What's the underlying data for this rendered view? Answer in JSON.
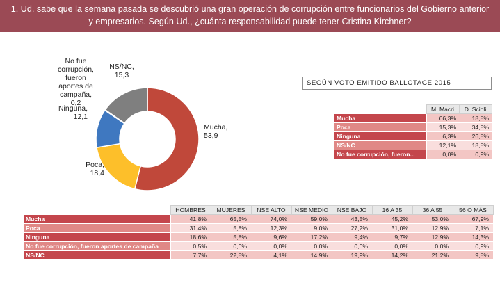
{
  "title": {
    "line1": "1. Ud. sabe que la semana pasada se descubrió una gran operación de corrupción entre funcionarios del Gobierno anterior",
    "line2": "y empresarios. Según Ud., ¿cuánta responsabilidad puede tener Cristina Kirchner?"
  },
  "colors": {
    "title_bg": "#9b4a55",
    "mucha": "#c0483a",
    "poca": "#fdbf2a",
    "no_fue": "#4cae8e",
    "ninguna": "#3f78c0",
    "nsnc": "#7f7f7f"
  },
  "chart_data": {
    "type": "pie",
    "variant": "donut",
    "title": "",
    "slices": [
      {
        "key": "mucha",
        "label": [
          "Mucha,",
          "53,9"
        ],
        "value": 53.9,
        "color": "#c0483a"
      },
      {
        "key": "poca",
        "label": [
          "Poca,",
          "18,4"
        ],
        "value": 18.4,
        "color": "#fdbf2a"
      },
      {
        "key": "ninguna",
        "label": [
          "Ninguna,",
          "12,1"
        ],
        "value": 12.1,
        "color": "#3f78c0"
      },
      {
        "key": "no_fue",
        "label": [
          "No fue",
          "corrupción,",
          "fueron",
          "aportes de",
          "campaña,",
          "0,2"
        ],
        "value": 0.2,
        "color": "#4cae8e"
      },
      {
        "key": "nsnc",
        "label": [
          "NS/NC,",
          "15,3"
        ],
        "value": 15.3,
        "color": "#7f7f7f"
      }
    ]
  },
  "ballotage": {
    "header": "SEGÚN VOTO EMITIDO BALLOTAGE 2015",
    "columns": [
      "M. Macri",
      "D. Scioli"
    ],
    "rows": [
      {
        "label": "Mucha",
        "values": [
          "66,3%",
          "18,8%"
        ]
      },
      {
        "label": "Poca",
        "values": [
          "15,3%",
          "34,8%"
        ]
      },
      {
        "label": "Ninguna",
        "values": [
          "6,3%",
          "26,8%"
        ]
      },
      {
        "label": "NS/NC",
        "values": [
          "12,1%",
          "18,8%"
        ]
      },
      {
        "label": "No fue corrupción, fueron...",
        "values": [
          "0,0%",
          "0,9%"
        ]
      }
    ]
  },
  "demographics": {
    "columns": [
      "HOMBRES",
      "MUJERES",
      "NSE ALTO",
      "NSE MEDIO",
      "NSE BAJO",
      "16 A 35",
      "36 A 55",
      "56 O MÁS"
    ],
    "rows": [
      {
        "label": "Mucha",
        "values": [
          "41,8%",
          "65,5%",
          "74,0%",
          "59,0%",
          "43,5%",
          "45,2%",
          "53,0%",
          "67,9%"
        ]
      },
      {
        "label": "Poca",
        "values": [
          "31,4%",
          "5,8%",
          "12,3%",
          "9,0%",
          "27,2%",
          "31,0%",
          "12,9%",
          "7,1%"
        ]
      },
      {
        "label": "Ninguna",
        "values": [
          "18,6%",
          "5,8%",
          "9,6%",
          "17,2%",
          "9,4%",
          "9,7%",
          "12,9%",
          "14,3%"
        ]
      },
      {
        "label": "No fue corrupción, fueron aportes de campaña",
        "values": [
          "0,5%",
          "0,0%",
          "0,0%",
          "0,0%",
          "0,0%",
          "0,0%",
          "0,0%",
          "0,9%"
        ]
      },
      {
        "label": "NS/NC",
        "values": [
          "7,7%",
          "22,8%",
          "4,1%",
          "14,9%",
          "19,9%",
          "14,2%",
          "21,2%",
          "9,8%"
        ]
      }
    ]
  }
}
